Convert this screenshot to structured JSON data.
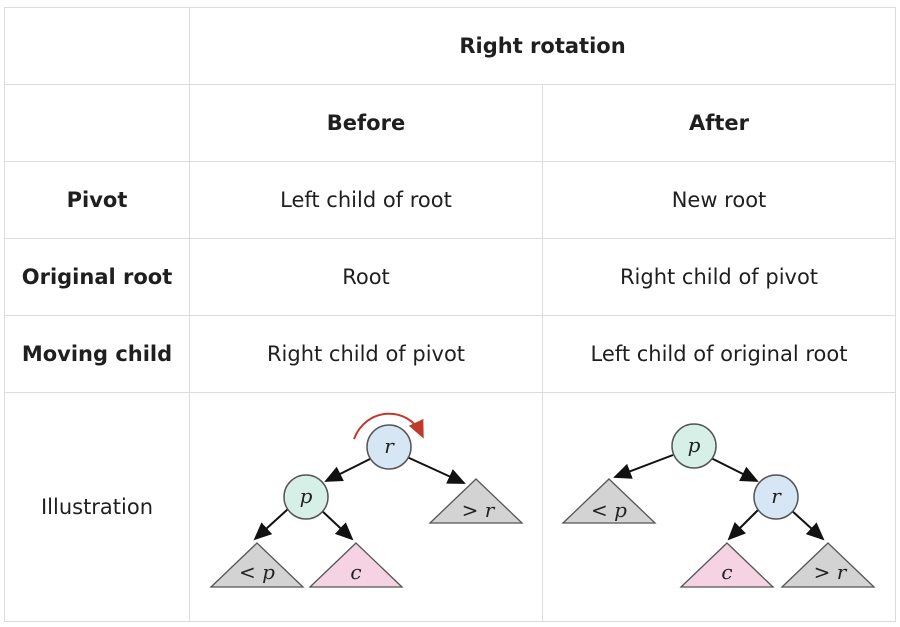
{
  "table": {
    "title": "Right rotation",
    "columns": {
      "before": "Before",
      "after": "After"
    },
    "rows": [
      {
        "label": "Pivot",
        "before": "Left child of root",
        "after": "New root"
      },
      {
        "label": "Original root",
        "before": "Root",
        "after": "Right child of pivot"
      },
      {
        "label": "Moving child",
        "before": "Right child of pivot",
        "after": "Left child of original root"
      }
    ],
    "illustration_label": "Illustration"
  },
  "illustration": {
    "before": {
      "root": "r",
      "left": "p",
      "right_subtree": "> r",
      "left_left_subtree": "< p",
      "left_right_subtree": "c"
    },
    "after": {
      "root": "p",
      "right": "r",
      "left_subtree": "< p",
      "right_left_subtree": "c",
      "right_right_subtree": "> r"
    },
    "colors": {
      "node_r": "#d6e6f5",
      "node_p": "#d6f0e8",
      "subtree_gray": "#d3d3d3",
      "subtree_pink": "#f5d3e3",
      "rotation_arrow": "#c0392b"
    }
  }
}
